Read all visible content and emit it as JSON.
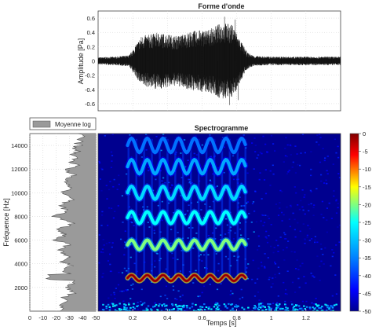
{
  "chart_data": [
    {
      "type": "line",
      "title": "Forme d'onde",
      "ylabel": "Amplitude [Pa]",
      "xlabel": "",
      "ylim": [
        -0.7,
        0.7
      ],
      "xlim": [
        0,
        1.4
      ],
      "y_ticks": [
        "0.6",
        "0.4",
        "0.2",
        "0",
        "-0.2",
        "-0.4",
        "-0.6"
      ],
      "y_tick_values": [
        0.6,
        0.4,
        0.2,
        0,
        -0.2,
        -0.4,
        -0.6
      ],
      "grid": true,
      "envelope": {
        "t": [
          0,
          0.1,
          0.18,
          0.25,
          0.35,
          0.45,
          0.55,
          0.65,
          0.72,
          0.78,
          0.82,
          0.86,
          0.9,
          1.0,
          1.2,
          1.4
        ],
        "amp": [
          0.05,
          0.06,
          0.08,
          0.35,
          0.4,
          0.35,
          0.42,
          0.45,
          0.55,
          0.5,
          0.3,
          0.12,
          0.07,
          0.06,
          0.06,
          0.06
        ]
      }
    },
    {
      "type": "line",
      "title": "",
      "legend": [
        "Moyenne log"
      ],
      "ylabel": "Fréquence [Hz]",
      "xlim": [
        0,
        -50
      ],
      "ylim": [
        0,
        15000
      ],
      "x_ticks": [
        "0",
        "-10",
        "-20",
        "-30",
        "-40",
        "-50"
      ],
      "x_tick_values": [
        0,
        -10,
        -20,
        -30,
        -40,
        -50
      ],
      "y_ticks": [
        "14000",
        "12000",
        "10000",
        "8000",
        "6000",
        "4000",
        "2000"
      ],
      "y_tick_values": [
        14000,
        12000,
        10000,
        8000,
        6000,
        4000,
        2000
      ],
      "grid": true,
      "x": [
        -24,
        -30,
        -25,
        -32,
        -28,
        -34,
        -27,
        -33,
        -26,
        -31,
        -24,
        -29,
        -22,
        -30,
        -20,
        -27,
        -22,
        -32,
        -18,
        -28,
        -23,
        -35,
        -25,
        -30,
        -26,
        -33,
        -28,
        -36,
        -30,
        -35,
        -32,
        -37,
        -33,
        -38,
        -35,
        -40,
        -36,
        -40,
        -38,
        -42,
        -40
      ],
      "y": [
        500,
        800,
        1100,
        1500,
        2000,
        2500,
        2800,
        3000,
        3300,
        3800,
        4200,
        4700,
        5200,
        5700,
        6000,
        6400,
        6900,
        7400,
        8000,
        8500,
        9000,
        9500,
        10000,
        10500,
        11000,
        11500,
        12000,
        12300,
        12600,
        12900,
        13200,
        13500,
        13800,
        14000,
        14200,
        14400,
        14600,
        14800,
        15000,
        15000,
        15000
      ]
    },
    {
      "type": "heatmap",
      "title": "Spectrogramme",
      "xlabel": "Temps [s]",
      "xlim": [
        0,
        1.4
      ],
      "ylim": [
        0,
        15000
      ],
      "x_ticks": [
        "0.2",
        "0.4",
        "0.6",
        "0.8",
        "1",
        "1.2"
      ],
      "x_tick_values": [
        0.2,
        0.4,
        0.6,
        0.8,
        1,
        1.2
      ],
      "colorbar_ticks": [
        "0",
        "-5",
        "-10",
        "-15",
        "-20",
        "-25",
        "-30",
        "-35",
        "-40",
        "-45",
        "-50"
      ],
      "colorbar_values": [
        0,
        -5,
        -10,
        -15,
        -20,
        -25,
        -30,
        -35,
        -40,
        -45,
        -50
      ],
      "harmonics": [
        {
          "base_hz": 2800,
          "level_db": -3,
          "mod_hz": 250
        },
        {
          "base_hz": 5600,
          "level_db": -20,
          "mod_hz": 400
        },
        {
          "base_hz": 7900,
          "level_db": -25,
          "mod_hz": 500
        },
        {
          "base_hz": 10000,
          "level_db": -28,
          "mod_hz": 550
        },
        {
          "base_hz": 12200,
          "level_db": -32,
          "mod_hz": 600
        },
        {
          "base_hz": 14000,
          "level_db": -36,
          "mod_hz": 600
        }
      ],
      "t_start": 0.17,
      "t_end": 0.85
    }
  ]
}
